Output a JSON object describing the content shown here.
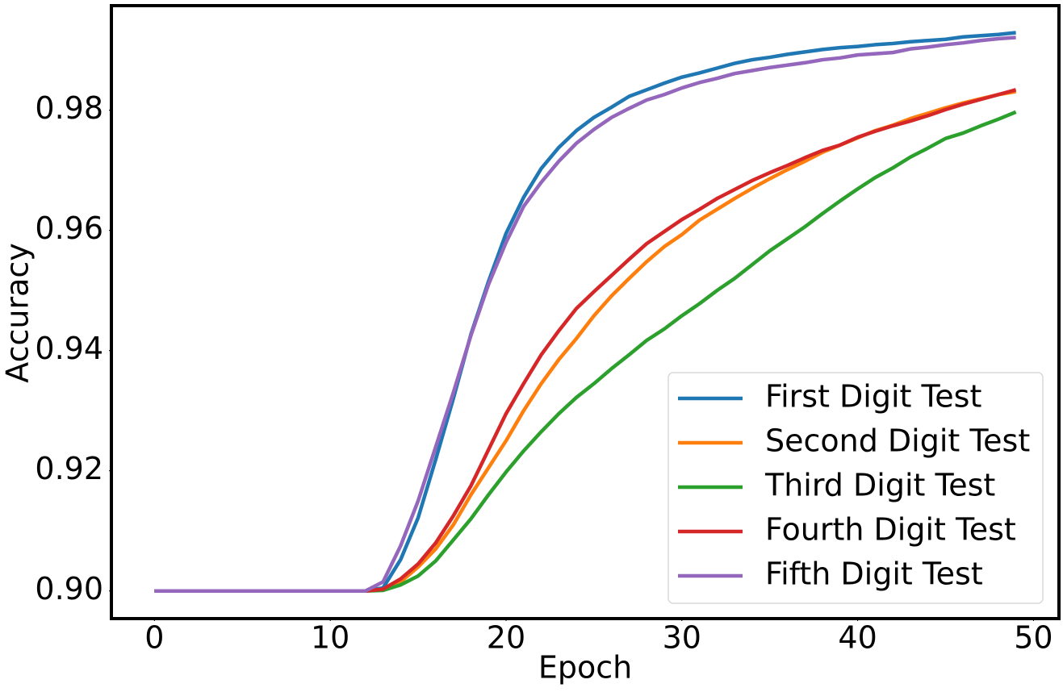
{
  "chart_data": {
    "type": "line",
    "x_label": "Epoch",
    "y_label": "Accuracy",
    "x": [
      0,
      1,
      2,
      3,
      4,
      5,
      6,
      7,
      8,
      9,
      10,
      11,
      12,
      13,
      14,
      15,
      16,
      17,
      18,
      19,
      20,
      21,
      22,
      23,
      24,
      25,
      26,
      27,
      28,
      29,
      30,
      31,
      32,
      33,
      34,
      35,
      36,
      37,
      38,
      39,
      40,
      41,
      42,
      43,
      44,
      45,
      46,
      47,
      48,
      49
    ],
    "series": [
      {
        "name": "First Digit Test",
        "color": "#1f77b4",
        "values": [
          0.9,
          0.9,
          0.9,
          0.9,
          0.9,
          0.9,
          0.9,
          0.9,
          0.9,
          0.9,
          0.9,
          0.9,
          0.9,
          0.9005,
          0.9052,
          0.9122,
          0.9219,
          0.932,
          0.9427,
          0.9515,
          0.9595,
          0.9655,
          0.9703,
          0.9738,
          0.9766,
          0.9788,
          0.9805,
          0.9823,
          0.9834,
          0.9845,
          0.9855,
          0.9862,
          0.987,
          0.9878,
          0.9884,
          0.9888,
          0.9893,
          0.9897,
          0.9901,
          0.9904,
          0.9906,
          0.9909,
          0.9911,
          0.9914,
          0.9916,
          0.9918,
          0.9922,
          0.9924,
          0.9926,
          0.9929
        ]
      },
      {
        "name": "Second Digit Test",
        "color": "#ff7f0e",
        "values": [
          0.9,
          0.9,
          0.9,
          0.9,
          0.9,
          0.9,
          0.9,
          0.9,
          0.9,
          0.9,
          0.9,
          0.9,
          0.9,
          0.9002,
          0.9015,
          0.904,
          0.907,
          0.911,
          0.916,
          0.9205,
          0.925,
          0.93,
          0.9345,
          0.9385,
          0.942,
          0.9458,
          0.9491,
          0.952,
          0.9548,
          0.9573,
          0.9593,
          0.9617,
          0.9635,
          0.9653,
          0.967,
          0.9686,
          0.9701,
          0.9715,
          0.973,
          0.9742,
          0.9754,
          0.9766,
          0.9775,
          0.9786,
          0.9795,
          0.9804,
          0.9812,
          0.9819,
          0.9826,
          0.9831
        ]
      },
      {
        "name": "Third Digit Test",
        "color": "#2ca02c",
        "values": [
          0.9,
          0.9,
          0.9,
          0.9,
          0.9,
          0.9,
          0.9,
          0.9,
          0.9,
          0.9,
          0.9,
          0.9,
          0.9,
          0.9001,
          0.901,
          0.9025,
          0.905,
          0.9085,
          0.912,
          0.916,
          0.9198,
          0.9233,
          0.9265,
          0.9295,
          0.9322,
          0.9345,
          0.937,
          0.9393,
          0.9417,
          0.9436,
          0.9458,
          0.9478,
          0.95,
          0.952,
          0.9543,
          0.9566,
          0.9586,
          0.9606,
          0.9628,
          0.9649,
          0.9669,
          0.9688,
          0.9704,
          0.9722,
          0.9737,
          0.9753,
          0.9762,
          0.9774,
          0.9785,
          0.9797
        ]
      },
      {
        "name": "Fourth Digit Test",
        "color": "#d62728",
        "values": [
          0.9,
          0.9,
          0.9,
          0.9,
          0.9,
          0.9,
          0.9,
          0.9,
          0.9,
          0.9,
          0.9,
          0.9,
          0.9,
          0.9003,
          0.902,
          0.9045,
          0.908,
          0.9125,
          0.9175,
          0.9235,
          0.9295,
          0.9345,
          0.9393,
          0.9433,
          0.947,
          0.9498,
          0.9525,
          0.9552,
          0.9578,
          0.9598,
          0.9618,
          0.9635,
          0.9653,
          0.9668,
          0.9683,
          0.9696,
          0.9708,
          0.9721,
          0.9733,
          0.9742,
          0.9755,
          0.9765,
          0.9774,
          0.9782,
          0.9791,
          0.9801,
          0.981,
          0.9818,
          0.9826,
          0.9834
        ]
      },
      {
        "name": "Fifth Digit Test",
        "color": "#9467bd",
        "values": [
          0.9,
          0.9,
          0.9,
          0.9,
          0.9,
          0.9,
          0.9,
          0.9,
          0.9,
          0.9,
          0.9,
          0.9,
          0.9,
          0.9015,
          0.9075,
          0.915,
          0.924,
          0.933,
          0.9425,
          0.951,
          0.958,
          0.964,
          0.968,
          0.9715,
          0.9745,
          0.9768,
          0.9788,
          0.9803,
          0.9817,
          0.9826,
          0.9837,
          0.9846,
          0.9853,
          0.9861,
          0.9866,
          0.9871,
          0.9875,
          0.9879,
          0.9884,
          0.9887,
          0.9892,
          0.9894,
          0.9896,
          0.9902,
          0.9905,
          0.9909,
          0.9912,
          0.9916,
          0.9919,
          0.9921
        ]
      }
    ],
    "xlim": [
      -2.45,
      51.45
    ],
    "xticks": [
      0,
      10,
      20,
      30,
      40,
      50
    ],
    "ylim": [
      0.8954,
      0.9974
    ],
    "yticks": [
      {
        "value": 0.9,
        "label": "0.90"
      },
      0.92,
      0.94,
      0.96,
      0.98
    ],
    "grid": false,
    "legend": "lower right"
  }
}
